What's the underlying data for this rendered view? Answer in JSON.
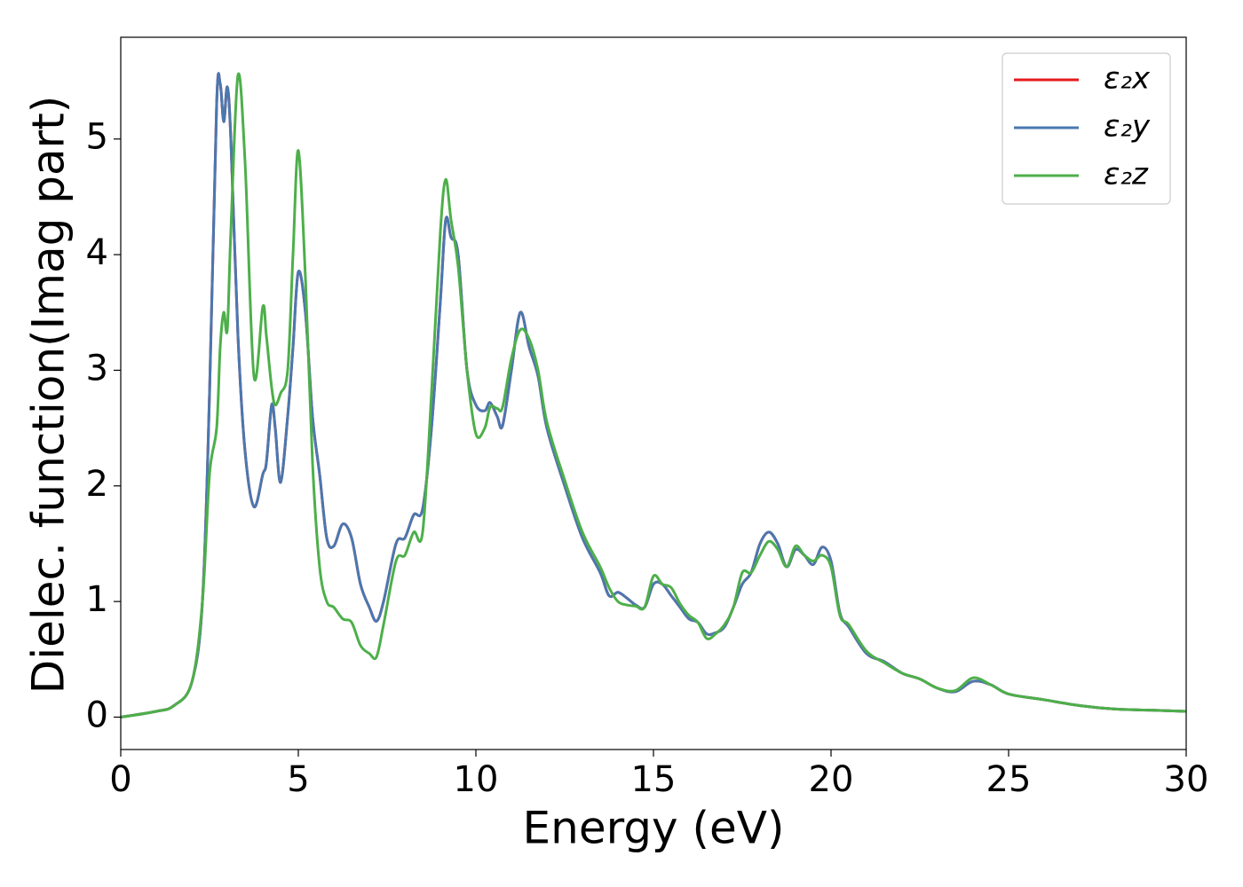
{
  "chart_data": {
    "type": "line",
    "xlabel": "Energy (eV)",
    "ylabel": "Dielec. function(Imag part)",
    "x": [
      0,
      1,
      1.5,
      2,
      2.3,
      2.5,
      2.7,
      2.8,
      2.9,
      3.0,
      3.1,
      3.3,
      3.5,
      3.75,
      4.0,
      4.1,
      4.25,
      4.35,
      4.5,
      4.7,
      4.85,
      5.0,
      5.2,
      5.4,
      5.6,
      5.8,
      6.0,
      6.25,
      6.5,
      6.75,
      7.0,
      7.2,
      7.4,
      7.75,
      8.0,
      8.25,
      8.5,
      8.75,
      9.0,
      9.15,
      9.3,
      9.5,
      9.75,
      10,
      10.25,
      10.4,
      10.6,
      10.75,
      11,
      11.25,
      11.5,
      11.75,
      12,
      12.5,
      13,
      13.5,
      13.75,
      14,
      14.25,
      14.5,
      14.75,
      15,
      15.25,
      15.5,
      15.75,
      16,
      16.25,
      16.5,
      16.75,
      17,
      17.25,
      17.5,
      17.75,
      18,
      18.25,
      18.5,
      18.75,
      19,
      19.25,
      19.5,
      19.75,
      20,
      20.25,
      20.5,
      21,
      21.5,
      22,
      22.5,
      23,
      23.5,
      24,
      24.5,
      25,
      26,
      27,
      28,
      29,
      30
    ],
    "series": [
      {
        "name": "ε₂x",
        "color": "#e41a1c",
        "values": [
          0,
          0.05,
          0.1,
          0.3,
          1.0,
          2.8,
          5.3,
          5.48,
          5.15,
          5.45,
          5.0,
          3.3,
          2.3,
          1.82,
          2.1,
          2.2,
          2.7,
          2.5,
          2.03,
          2.6,
          3.2,
          3.85,
          3.5,
          2.6,
          2.1,
          1.55,
          1.48,
          1.67,
          1.55,
          1.15,
          0.95,
          0.83,
          1.0,
          1.5,
          1.55,
          1.75,
          1.8,
          2.5,
          3.6,
          4.3,
          4.15,
          4.0,
          3.0,
          2.7,
          2.65,
          2.72,
          2.6,
          2.52,
          3.0,
          3.5,
          3.2,
          2.95,
          2.5,
          2.0,
          1.55,
          1.25,
          1.05,
          1.08,
          1.03,
          0.97,
          0.95,
          1.15,
          1.15,
          1.05,
          0.95,
          0.85,
          0.82,
          0.72,
          0.73,
          0.78,
          0.95,
          1.15,
          1.25,
          1.5,
          1.6,
          1.5,
          1.3,
          1.45,
          1.4,
          1.32,
          1.47,
          1.35,
          0.9,
          0.78,
          0.55,
          0.48,
          0.38,
          0.33,
          0.25,
          0.22,
          0.31,
          0.28,
          0.2,
          0.15,
          0.1,
          0.07,
          0.06,
          0.05
        ]
      },
      {
        "name": "ε₂y",
        "color": "#4a78b0",
        "values": [
          0,
          0.05,
          0.1,
          0.3,
          1.0,
          2.8,
          5.3,
          5.48,
          5.15,
          5.45,
          5.0,
          3.3,
          2.3,
          1.82,
          2.1,
          2.2,
          2.7,
          2.5,
          2.03,
          2.6,
          3.2,
          3.85,
          3.5,
          2.6,
          2.1,
          1.55,
          1.48,
          1.67,
          1.55,
          1.15,
          0.95,
          0.83,
          1.0,
          1.5,
          1.55,
          1.75,
          1.8,
          2.5,
          3.6,
          4.3,
          4.15,
          4.0,
          3.0,
          2.7,
          2.65,
          2.72,
          2.6,
          2.52,
          3.0,
          3.5,
          3.2,
          2.95,
          2.5,
          2.0,
          1.55,
          1.25,
          1.05,
          1.08,
          1.03,
          0.97,
          0.95,
          1.15,
          1.15,
          1.05,
          0.95,
          0.85,
          0.82,
          0.72,
          0.73,
          0.78,
          0.95,
          1.15,
          1.25,
          1.5,
          1.6,
          1.5,
          1.3,
          1.45,
          1.4,
          1.32,
          1.47,
          1.35,
          0.9,
          0.78,
          0.55,
          0.48,
          0.38,
          0.33,
          0.25,
          0.22,
          0.31,
          0.28,
          0.2,
          0.15,
          0.1,
          0.07,
          0.06,
          0.05
        ]
      },
      {
        "name": "ε₂z",
        "color": "#4daf4a",
        "values": [
          0,
          0.05,
          0.1,
          0.3,
          1.0,
          2.1,
          2.5,
          3.2,
          3.5,
          3.35,
          4.2,
          5.55,
          4.8,
          2.95,
          3.55,
          3.3,
          2.85,
          2.7,
          2.8,
          3.0,
          4.0,
          4.9,
          3.8,
          2.2,
          1.3,
          1.0,
          0.95,
          0.85,
          0.82,
          0.62,
          0.55,
          0.52,
          0.8,
          1.35,
          1.4,
          1.6,
          1.6,
          2.8,
          4.2,
          4.65,
          4.3,
          3.9,
          3.0,
          2.45,
          2.5,
          2.68,
          2.67,
          2.68,
          3.1,
          3.35,
          3.27,
          3.0,
          2.55,
          2.05,
          1.6,
          1.3,
          1.12,
          1.0,
          0.97,
          0.96,
          0.95,
          1.22,
          1.15,
          1.12,
          0.98,
          0.88,
          0.82,
          0.68,
          0.72,
          0.8,
          0.95,
          1.25,
          1.25,
          1.4,
          1.52,
          1.45,
          1.3,
          1.48,
          1.4,
          1.35,
          1.4,
          1.3,
          0.88,
          0.8,
          0.57,
          0.47,
          0.38,
          0.33,
          0.25,
          0.23,
          0.34,
          0.28,
          0.2,
          0.15,
          0.1,
          0.07,
          0.06,
          0.05
        ]
      }
    ],
    "xlim": [
      0,
      30
    ],
    "xticks": [
      0,
      5,
      10,
      15,
      20,
      25,
      30
    ],
    "ylim": [
      -0.28,
      5.88
    ],
    "yticks": [
      0,
      1,
      2,
      3,
      4,
      5
    ],
    "grid": false,
    "legend": "upper right"
  }
}
